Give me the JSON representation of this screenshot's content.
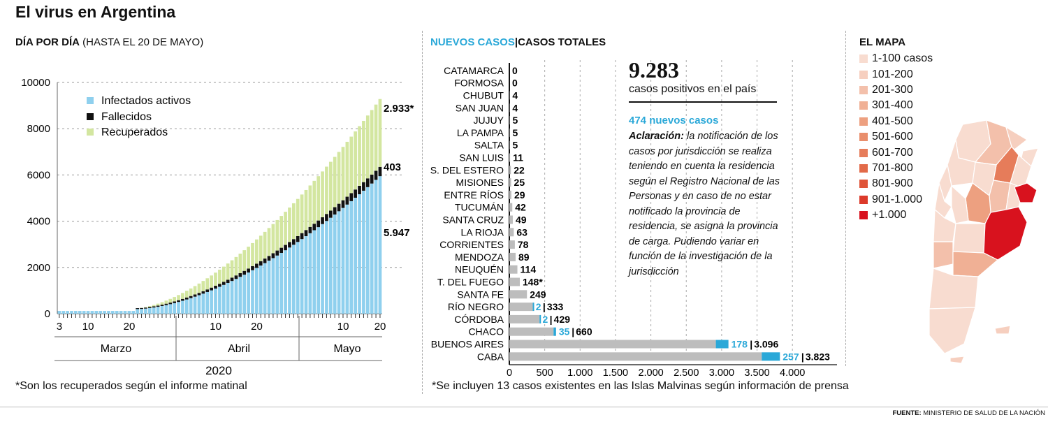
{
  "title": "El virus en Argentina",
  "left_heading": {
    "bold": "DÍA POR DÍA",
    "rest": " (HASTA EL 20 DE MAYO)"
  },
  "left_footnote": "*Son los recuperados según el informe matinal",
  "mid_heading": {
    "new": "NUEVOS CASOS",
    "sep": "|",
    "total": "CASOS TOTALES"
  },
  "mid_footnote": "*Se incluyen 13 casos existentes en las Islas Malvinas según información de prensa",
  "summary": {
    "total_number": "9.283",
    "total_label": "casos positivos en el país",
    "new_cases": "474 nuevos casos",
    "note_bold": "Aclaración:",
    "note_text": " la notificación de los casos por jurisdicción se realiza teniendo en cuenta la residencia según el Registro Nacional de las Personas y en caso de no estar notificado la provincia de residencia, se asigna la provincia de carga. Pudiendo variar en función de la investigación de la jurisdicción"
  },
  "map": {
    "heading": "EL MAPA",
    "legend": [
      {
        "label": "1-100 casos",
        "color": "#f8dcd0"
      },
      {
        "label": "101-200",
        "color": "#f6cfbf"
      },
      {
        "label": "201-300",
        "color": "#f3c0ab"
      },
      {
        "label": "301-400",
        "color": "#f0b095"
      },
      {
        "label": "401-500",
        "color": "#eda080"
      },
      {
        "label": "501-600",
        "color": "#e98e6c"
      },
      {
        "label": "601-700",
        "color": "#e67c5a"
      },
      {
        "label": "701-800",
        "color": "#e26a49"
      },
      {
        "label": "801-900",
        "color": "#df5438"
      },
      {
        "label": "901-1.000",
        "color": "#dc3a2a"
      },
      {
        "label": "+1.000",
        "color": "#d8121e"
      }
    ]
  },
  "source": {
    "bold": "FUENTE:",
    "rest": " MINISTERIO DE SALUD DE LA NACIÓN"
  },
  "colors": {
    "active": "#8fd0ee",
    "deaths": "#111111",
    "recovered": "#d3e6a0",
    "new_cases": "#2aa8d8",
    "total_bar": "#bdbdbd"
  },
  "chart_data": [
    {
      "type": "bar",
      "subtype": "stacked",
      "title": "DÍA POR DÍA (HASTA EL 20 DE MAYO)",
      "x_range": [
        "3 de marzo",
        "20 de mayo"
      ],
      "x_tick_labels": [
        "3",
        "10",
        "20",
        "10",
        "20",
        "10",
        "20"
      ],
      "month_labels": [
        "Marzo",
        "Abril",
        "Mayo"
      ],
      "year_label": "2020",
      "ylim": [
        0,
        10000
      ],
      "y_ticks": [
        0,
        2000,
        4000,
        6000,
        8000,
        10000
      ],
      "grid": true,
      "legend_position": "top-left",
      "series_names": [
        "Infectados activos",
        "Fallecidos",
        "Recuperados"
      ],
      "final_labels": [
        "2.933*",
        "403",
        "5.947"
      ],
      "series_daily": [
        {
          "name": "Infectados activos",
          "start": 1,
          "end": 5947
        },
        {
          "name": "Fallecidos",
          "start": 0,
          "end": 403
        },
        {
          "name": "Recuperados",
          "start": 0,
          "end": 2933
        }
      ]
    },
    {
      "type": "bar",
      "subtype": "horizontal",
      "xlim": [
        0,
        4000
      ],
      "x_ticks": [
        "0",
        "500",
        "1.000",
        "1.500",
        "2.000",
        "2.500",
        "3.000",
        "3.500",
        "4.000"
      ],
      "provinces": [
        {
          "name": "CATAMARCA",
          "total": 0,
          "new": 0,
          "label": "0"
        },
        {
          "name": "FORMOSA",
          "total": 0,
          "new": 0,
          "label": "0"
        },
        {
          "name": "CHUBUT",
          "total": 4,
          "new": 0,
          "label": "4"
        },
        {
          "name": "SAN JUAN",
          "total": 4,
          "new": 0,
          "label": "4"
        },
        {
          "name": "JUJUY",
          "total": 5,
          "new": 0,
          "label": "5"
        },
        {
          "name": "LA PAMPA",
          "total": 5,
          "new": 0,
          "label": "5"
        },
        {
          "name": "SALTA",
          "total": 5,
          "new": 0,
          "label": "5"
        },
        {
          "name": "SAN LUIS",
          "total": 11,
          "new": 0,
          "label": "11"
        },
        {
          "name": "S. DEL ESTERO",
          "total": 22,
          "new": 0,
          "label": "22"
        },
        {
          "name": "MISIONES",
          "total": 25,
          "new": 0,
          "label": "25"
        },
        {
          "name": "ENTRE RÍOS",
          "total": 29,
          "new": 0,
          "label": "29"
        },
        {
          "name": "TUCUMÁN",
          "total": 42,
          "new": 0,
          "label": "42"
        },
        {
          "name": "SANTA CRUZ",
          "total": 49,
          "new": 0,
          "label": "49"
        },
        {
          "name": "LA RIOJA",
          "total": 63,
          "new": 0,
          "label": "63"
        },
        {
          "name": "CORRIENTES",
          "total": 78,
          "new": 0,
          "label": "78"
        },
        {
          "name": "MENDOZA",
          "total": 89,
          "new": 0,
          "label": "89"
        },
        {
          "name": "NEUQUÉN",
          "total": 114,
          "new": 0,
          "label": "114"
        },
        {
          "name": "T. DEL FUEGO",
          "total": 148,
          "new": 0,
          "label": "148*"
        },
        {
          "name": "SANTA FE",
          "total": 249,
          "new": 0,
          "label": "249"
        },
        {
          "name": "RÍO NEGRO",
          "total": 333,
          "new": 2,
          "label": "333",
          "new_label": "2"
        },
        {
          "name": "CÓRDOBA",
          "total": 429,
          "new": 2,
          "label": "429",
          "new_label": "2"
        },
        {
          "name": "CHACO",
          "total": 660,
          "new": 35,
          "label": "660",
          "new_label": "35"
        },
        {
          "name": "BUENOS AIRES",
          "total": 3096,
          "new": 178,
          "label": "3.096",
          "new_label": "178"
        },
        {
          "name": "CABA",
          "total": 3823,
          "new": 257,
          "label": "3.823",
          "new_label": "257"
        }
      ]
    }
  ]
}
